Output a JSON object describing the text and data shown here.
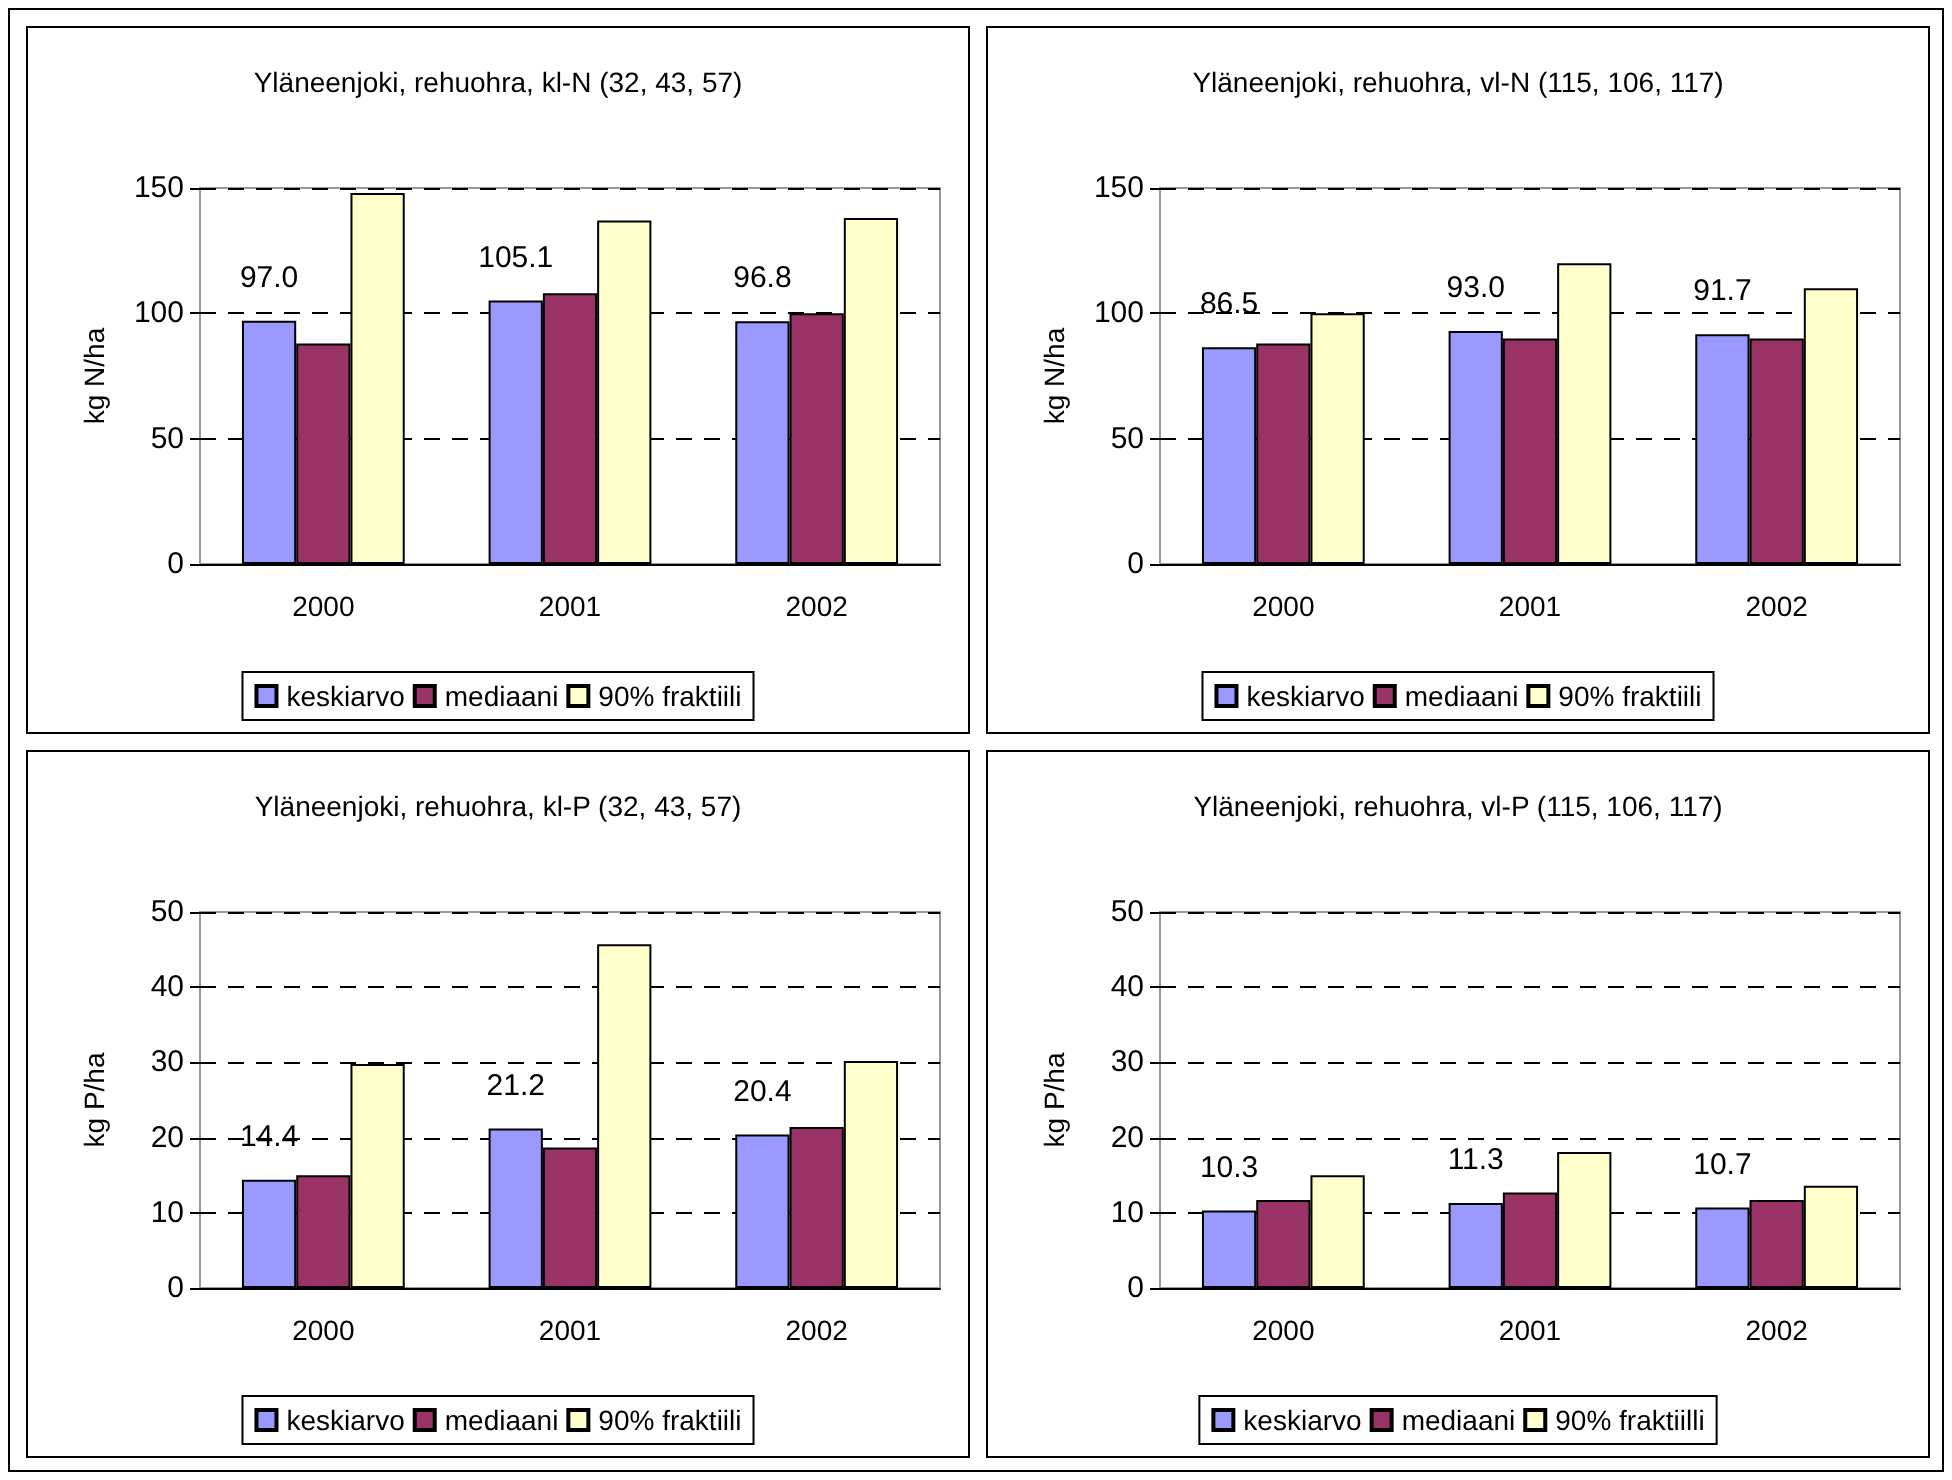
{
  "chart_data": [
    {
      "type": "bar",
      "title": "Yläneenjoki, rehuohra, kl-N (32, 43, 57)",
      "ylabel": "kg N/ha",
      "categories": [
        "2000",
        "2001",
        "2002"
      ],
      "ylim": [
        0,
        150
      ],
      "yticks": [
        0,
        50,
        100,
        150
      ],
      "grid": "y",
      "legend": "bottom",
      "series": [
        {
          "name": "keskiarvo",
          "color": "#9999ff",
          "values": [
            97.0,
            105.1,
            96.8
          ],
          "value_labels": [
            "97.0",
            "105.1",
            "96.8"
          ]
        },
        {
          "name": "mediaani",
          "color": "#993366",
          "values": [
            88,
            108,
            100
          ]
        },
        {
          "name": "90% fraktiili",
          "color": "#ffffcc",
          "values": [
            148,
            137,
            138
          ]
        }
      ]
    },
    {
      "type": "bar",
      "title": "Yläneenjoki, rehuohra, vl-N (115, 106, 117)",
      "ylabel": "kg N/ha",
      "categories": [
        "2000",
        "2001",
        "2002"
      ],
      "ylim": [
        0,
        150
      ],
      "yticks": [
        0,
        50,
        100,
        150
      ],
      "grid": "y",
      "legend": "bottom",
      "series": [
        {
          "name": "keskiarvo",
          "color": "#9999ff",
          "values": [
            86.5,
            93.0,
            91.7
          ],
          "value_labels": [
            "86.5",
            "93.0",
            "91.7"
          ]
        },
        {
          "name": "mediaani",
          "color": "#993366",
          "values": [
            88,
            90,
            90
          ]
        },
        {
          "name": "90% fraktiili",
          "color": "#ffffcc",
          "values": [
            100,
            120,
            110
          ]
        }
      ]
    },
    {
      "type": "bar",
      "title": "Yläneenjoki, rehuohra, kl-P (32, 43, 57)",
      "ylabel": "kg P/ha",
      "categories": [
        "2000",
        "2001",
        "2002"
      ],
      "ylim": [
        0,
        50
      ],
      "yticks": [
        0,
        10,
        20,
        30,
        40,
        50
      ],
      "grid": "y",
      "legend": "bottom",
      "series": [
        {
          "name": "keskiarvo",
          "color": "#9999ff",
          "values": [
            14.4,
            21.2,
            20.4
          ],
          "value_labels": [
            "14.4",
            "21.2",
            "20.4"
          ]
        },
        {
          "name": "mediaani",
          "color": "#993366",
          "values": [
            15.0,
            18.7,
            21.4
          ]
        },
        {
          "name": "90% fraktiili",
          "color": "#ffffcc",
          "values": [
            29.8,
            45.7,
            30.2
          ]
        }
      ]
    },
    {
      "type": "bar",
      "title": "Yläneenjoki, rehuohra, vl-P (115, 106, 117)",
      "ylabel": "kg P/ha",
      "categories": [
        "2000",
        "2001",
        "2002"
      ],
      "ylim": [
        0,
        50
      ],
      "yticks": [
        0,
        10,
        20,
        30,
        40,
        50
      ],
      "grid": "y",
      "legend": "bottom",
      "series": [
        {
          "name": "keskiarvo",
          "color": "#9999ff",
          "values": [
            10.3,
            11.3,
            10.7
          ],
          "value_labels": [
            "10.3",
            "11.3",
            "10.7"
          ]
        },
        {
          "name": "mediaani",
          "color": "#993366",
          "values": [
            11.7,
            12.7,
            11.7
          ]
        },
        {
          "name": "90% fraktiilli",
          "color": "#ffffcc",
          "values": [
            15.0,
            18.1,
            13.6
          ]
        }
      ]
    }
  ]
}
